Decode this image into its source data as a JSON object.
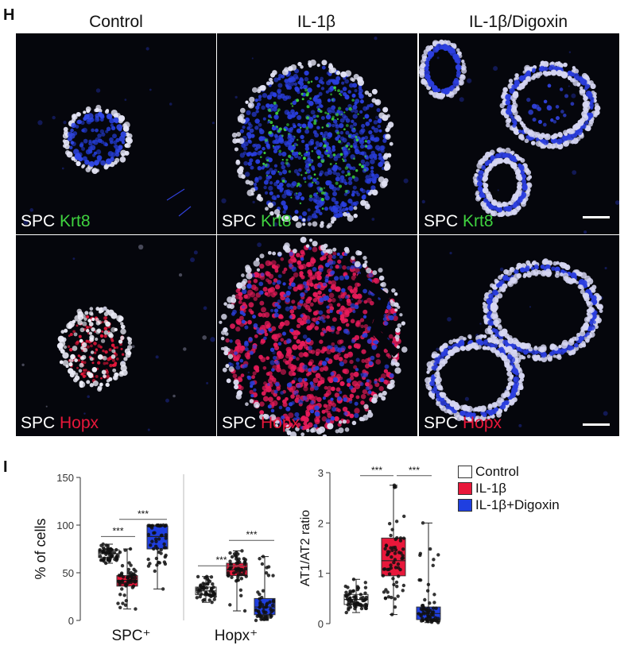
{
  "panel_h": {
    "letter": "H",
    "columns": [
      "Control",
      "IL-1β",
      "IL-1β/Digoxin"
    ],
    "rows": [
      {
        "label_white": "SPC",
        "label_stain": "Krt8",
        "stain_color": "#3fd23f"
      },
      {
        "label_white": "SPC",
        "label_stain": "Hopx",
        "stain_color": "#e8173a"
      }
    ]
  },
  "panel_i": {
    "letter": "I",
    "legend": [
      {
        "label": "Control",
        "color": "#ffffff"
      },
      {
        "label": "IL-1β",
        "color": "#e8173a"
      },
      {
        "label": "IL-1β+Digoxin",
        "color": "#1f3fe0"
      }
    ],
    "colors": {
      "control": "#ffffff",
      "il1b": "#e8173a",
      "digoxin": "#1f3fe0"
    }
  },
  "chart_data": [
    {
      "type": "box",
      "ylabel": "% of cells",
      "ylim": [
        0,
        150
      ],
      "yticks": [
        0,
        50,
        100,
        150
      ],
      "groups": [
        {
          "name": "SPC⁺",
          "boxes": [
            {
              "series": "Control",
              "min": 60,
              "q1": 66,
              "median": 70,
              "q3": 74,
              "max": 80
            },
            {
              "series": "IL-1β",
              "min": 12,
              "q1": 36,
              "median": 42,
              "q3": 47,
              "max": 75
            },
            {
              "series": "IL-1β+Digoxin",
              "min": 33,
              "q1": 75,
              "median": 88,
              "q3": 99,
              "max": 100
            }
          ],
          "significance": [
            [
              "Control",
              "IL-1β",
              "***"
            ],
            [
              "IL-1β",
              "IL-1β+Digoxin",
              "***"
            ]
          ]
        },
        {
          "name": "Hopx⁺",
          "boxes": [
            {
              "series": "Control",
              "min": 19,
              "q1": 27,
              "median": 31,
              "q3": 35,
              "max": 46
            },
            {
              "series": "IL-1β",
              "min": 10,
              "q1": 47,
              "median": 53,
              "q3": 60,
              "max": 73
            },
            {
              "series": "IL-1β+Digoxin",
              "min": 0,
              "q1": 6,
              "median": 14,
              "q3": 23,
              "max": 67
            }
          ],
          "significance": [
            [
              "Control",
              "IL-1β",
              "***"
            ],
            [
              "IL-1β",
              "IL-1β+Digoxin",
              "***"
            ]
          ]
        }
      ]
    },
    {
      "type": "box",
      "ylabel": "AT1/AT2 ratio",
      "ylim": [
        0,
        3
      ],
      "yticks": [
        0,
        1,
        2,
        3
      ],
      "boxes": [
        {
          "series": "Control",
          "min": 0.22,
          "q1": 0.38,
          "median": 0.48,
          "q3": 0.58,
          "max": 0.88
        },
        {
          "series": "IL-1β",
          "min": 0.18,
          "q1": 0.95,
          "median": 1.25,
          "q3": 1.7,
          "max": 2.75
        },
        {
          "series": "IL-1β+Digoxin",
          "min": 0.02,
          "q1": 0.08,
          "median": 0.2,
          "q3": 0.33,
          "max": 2.0
        }
      ],
      "significance": [
        [
          "Control",
          "IL-1β",
          "***"
        ],
        [
          "IL-1β",
          "IL-1β+Digoxin",
          "***"
        ]
      ]
    }
  ]
}
